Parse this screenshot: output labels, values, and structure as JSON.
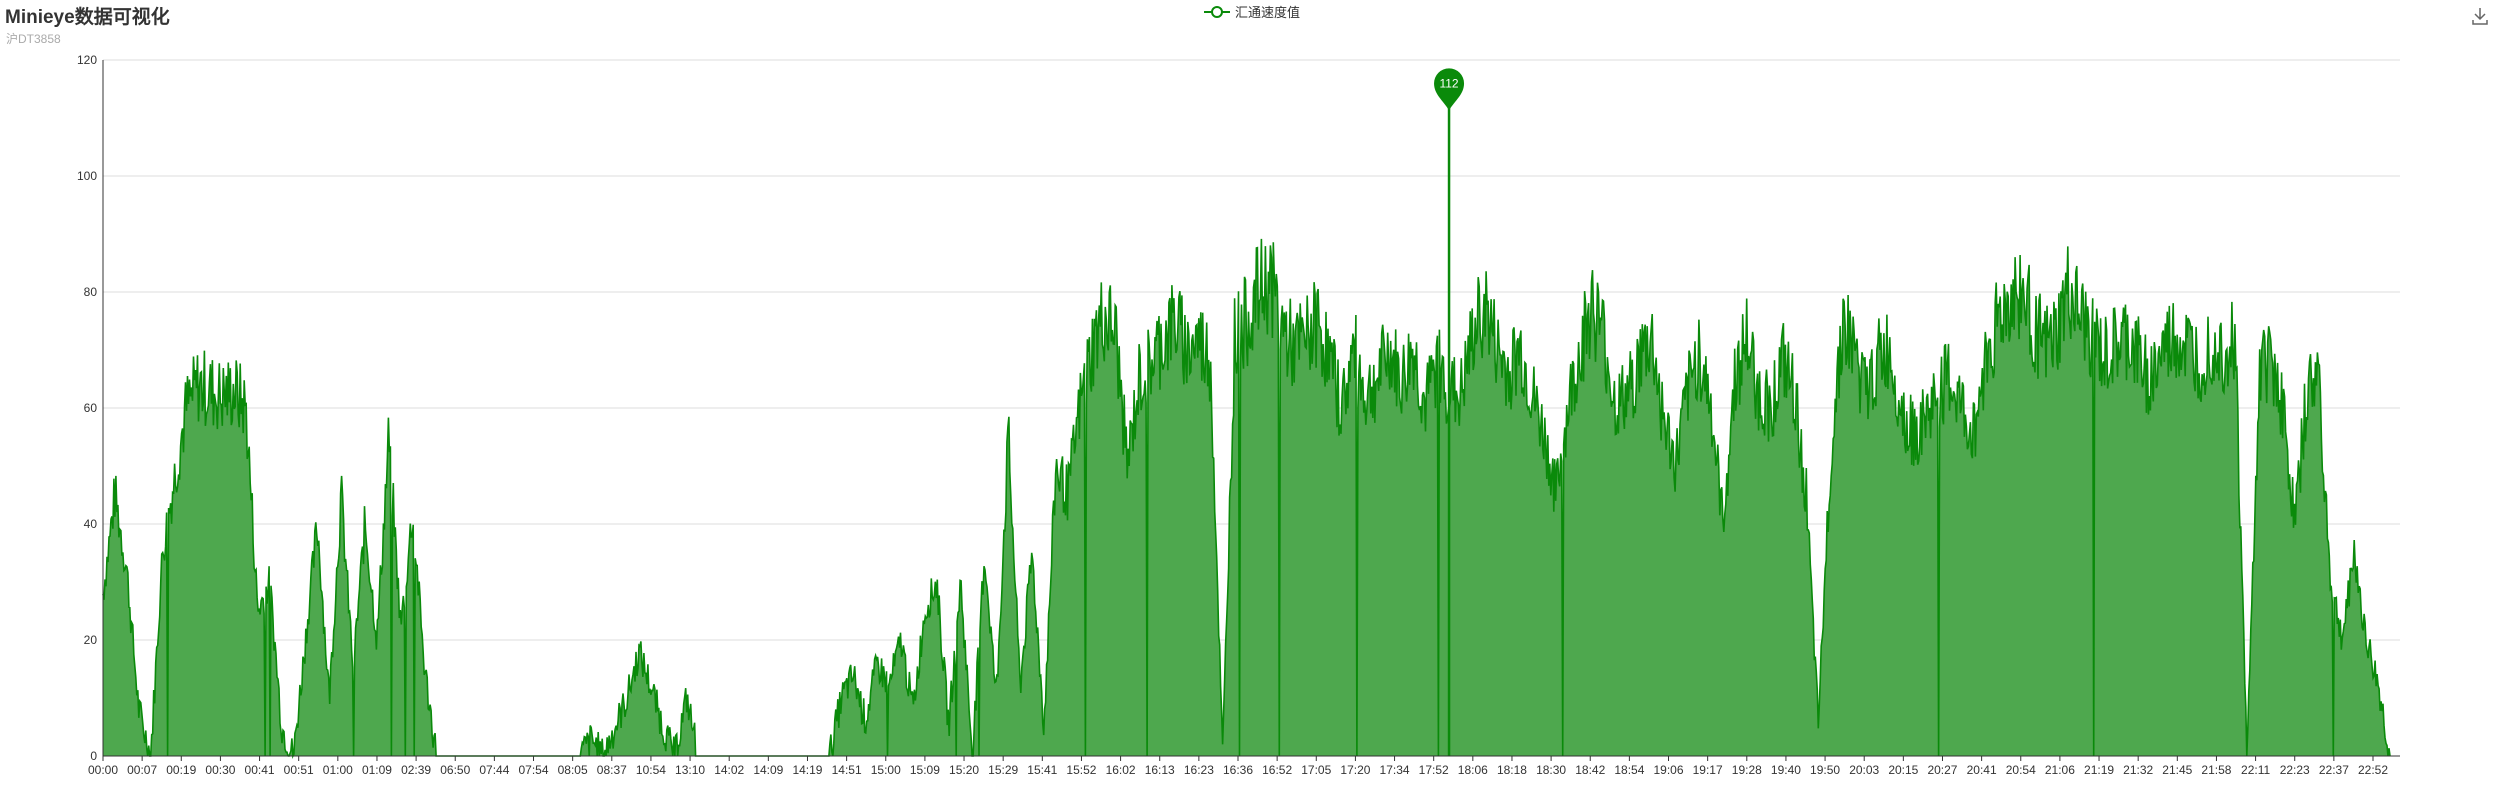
{
  "title": "Minieye数据可视化",
  "subtitle": "沪DT3858",
  "toolbar": {
    "save_icon": "download-icon"
  },
  "colors": {
    "series": "#0a8a0a",
    "area": "#4ea84e",
    "grid": "#dddddd",
    "axis": "#333333"
  },
  "chart_data": {
    "type": "area",
    "title": "Minieye数据可视化",
    "subtitle": "沪DT3858",
    "ylim": [
      0,
      120
    ],
    "yticks": [
      0,
      20,
      40,
      60,
      80,
      100,
      120
    ],
    "grid": true,
    "legend_position": "top-center",
    "x_tick_labels": [
      "00:00",
      "00:07",
      "00:19",
      "00:30",
      "00:41",
      "00:51",
      "01:00",
      "01:09",
      "02:39",
      "06:50",
      "07:44",
      "07:54",
      "08:05",
      "08:37",
      "10:54",
      "13:10",
      "14:02",
      "14:09",
      "14:19",
      "14:51",
      "15:00",
      "15:09",
      "15:20",
      "15:29",
      "15:41",
      "15:52",
      "16:02",
      "16:13",
      "16:23",
      "16:36",
      "16:52",
      "17:05",
      "17:20",
      "17:34",
      "17:52",
      "18:06",
      "18:18",
      "18:30",
      "18:42",
      "18:54",
      "19:06",
      "19:17",
      "19:28",
      "19:40",
      "19:50",
      "20:03",
      "20:15",
      "20:27",
      "20:41",
      "20:54",
      "21:06",
      "21:19",
      "21:32",
      "21:45",
      "21:58",
      "22:11",
      "22:23",
      "22:37",
      "22:52"
    ],
    "series": [
      {
        "name": "汇通速度值",
        "profile": [
          [
            0,
            28
          ],
          [
            1,
            45
          ],
          [
            2,
            32
          ],
          [
            3,
            8
          ],
          [
            4,
            0
          ],
          [
            5,
            35
          ],
          [
            6,
            48
          ],
          [
            7,
            60
          ],
          [
            8,
            64
          ],
          [
            9,
            63
          ],
          [
            10,
            62
          ],
          [
            11,
            63
          ],
          [
            12,
            60
          ],
          [
            13,
            25
          ],
          [
            14,
            30
          ],
          [
            15,
            5
          ],
          [
            16,
            0
          ],
          [
            17,
            20
          ],
          [
            18,
            40
          ],
          [
            19,
            10
          ],
          [
            20,
            45
          ],
          [
            21,
            15
          ],
          [
            22,
            40
          ],
          [
            23,
            20
          ],
          [
            24,
            55
          ],
          [
            25,
            22
          ],
          [
            26,
            42
          ],
          [
            27,
            15
          ],
          [
            28,
            0
          ],
          [
            29,
            0
          ],
          [
            30,
            0
          ],
          [
            31,
            0
          ],
          [
            32,
            0
          ],
          [
            33,
            0
          ],
          [
            34,
            0
          ],
          [
            35,
            0
          ],
          [
            36,
            0
          ],
          [
            37,
            0
          ],
          [
            38,
            0
          ],
          [
            39,
            0
          ],
          [
            40,
            0
          ],
          [
            41,
            3
          ],
          [
            42,
            0
          ],
          [
            43,
            5
          ],
          [
            44,
            10
          ],
          [
            45,
            18
          ],
          [
            46,
            12
          ],
          [
            47,
            5
          ],
          [
            48,
            0
          ],
          [
            49,
            10
          ],
          [
            50,
            0
          ],
          [
            51,
            0
          ],
          [
            52,
            0
          ],
          [
            53,
            0
          ],
          [
            54,
            0
          ],
          [
            55,
            0
          ],
          [
            56,
            0
          ],
          [
            57,
            0
          ],
          [
            58,
            0
          ],
          [
            59,
            0
          ],
          [
            60,
            0
          ],
          [
            61,
            0
          ],
          [
            62,
            10
          ],
          [
            63,
            14
          ],
          [
            64,
            6
          ],
          [
            65,
            16
          ],
          [
            66,
            12
          ],
          [
            67,
            20
          ],
          [
            68,
            8
          ],
          [
            69,
            25
          ],
          [
            70,
            30
          ],
          [
            71,
            5
          ],
          [
            72,
            30
          ],
          [
            73,
            0
          ],
          [
            74,
            35
          ],
          [
            75,
            10
          ],
          [
            76,
            55
          ],
          [
            77,
            12
          ],
          [
            78,
            35
          ],
          [
            79,
            5
          ],
          [
            80,
            50
          ],
          [
            81,
            45
          ],
          [
            82,
            60
          ],
          [
            83,
            70
          ],
          [
            84,
            76
          ],
          [
            85,
            73
          ],
          [
            86,
            50
          ],
          [
            87,
            65
          ],
          [
            88,
            68
          ],
          [
            89,
            72
          ],
          [
            90,
            75
          ],
          [
            91,
            70
          ],
          [
            92,
            72
          ],
          [
            93,
            68
          ],
          [
            94,
            0
          ],
          [
            95,
            72
          ],
          [
            96,
            75
          ],
          [
            97,
            80
          ],
          [
            98,
            82
          ],
          [
            99,
            74
          ],
          [
            100,
            70
          ],
          [
            101,
            72
          ],
          [
            102,
            75
          ],
          [
            103,
            68
          ],
          [
            104,
            60
          ],
          [
            105,
            70
          ],
          [
            106,
            62
          ],
          [
            107,
            65
          ],
          [
            108,
            70
          ],
          [
            109,
            64
          ],
          [
            110,
            70
          ],
          [
            111,
            60
          ],
          [
            112,
            68
          ],
          [
            113,
            63
          ],
          [
            114,
            62
          ],
          [
            115,
            72
          ],
          [
            116,
            78
          ],
          [
            117,
            70
          ],
          [
            118,
            66
          ],
          [
            119,
            70
          ],
          [
            120,
            62
          ],
          [
            121,
            55
          ],
          [
            122,
            45
          ],
          [
            123,
            60
          ],
          [
            124,
            70
          ],
          [
            125,
            78
          ],
          [
            126,
            72
          ],
          [
            127,
            60
          ],
          [
            128,
            62
          ],
          [
            129,
            68
          ],
          [
            130,
            72
          ],
          [
            131,
            58
          ],
          [
            132,
            50
          ],
          [
            133,
            62
          ],
          [
            134,
            70
          ],
          [
            135,
            60
          ],
          [
            136,
            40
          ],
          [
            137,
            65
          ],
          [
            138,
            72
          ],
          [
            139,
            62
          ],
          [
            140,
            60
          ],
          [
            141,
            68
          ],
          [
            142,
            62
          ],
          [
            143,
            45
          ],
          [
            144,
            5
          ],
          [
            145,
            50
          ],
          [
            146,
            75
          ],
          [
            147,
            70
          ],
          [
            148,
            62
          ],
          [
            149,
            68
          ],
          [
            150,
            70
          ],
          [
            151,
            60
          ],
          [
            152,
            55
          ],
          [
            153,
            58
          ],
          [
            154,
            62
          ],
          [
            155,
            65
          ],
          [
            156,
            60
          ],
          [
            157,
            55
          ],
          [
            158,
            68
          ],
          [
            159,
            75
          ],
          [
            160,
            78
          ],
          [
            161,
            80
          ],
          [
            162,
            75
          ],
          [
            163,
            70
          ],
          [
            164,
            72
          ],
          [
            165,
            80
          ],
          [
            166,
            75
          ],
          [
            167,
            72
          ],
          [
            168,
            68
          ],
          [
            169,
            70
          ],
          [
            170,
            72
          ],
          [
            171,
            68
          ],
          [
            172,
            65
          ],
          [
            173,
            70
          ],
          [
            174,
            72
          ],
          [
            175,
            70
          ],
          [
            176,
            68
          ],
          [
            177,
            72
          ],
          [
            178,
            70
          ],
          [
            179,
            72
          ],
          [
            180,
            0
          ],
          [
            181,
            65
          ],
          [
            182,
            70
          ],
          [
            183,
            60
          ],
          [
            184,
            40
          ],
          [
            185,
            62
          ],
          [
            186,
            66
          ],
          [
            187,
            30
          ],
          [
            188,
            20
          ],
          [
            189,
            35
          ],
          [
            190,
            20
          ],
          [
            191,
            12
          ],
          [
            192,
            0
          ]
        ],
        "markPoint": {
          "label": "112",
          "value": 112,
          "position": 0.586
        }
      }
    ]
  }
}
